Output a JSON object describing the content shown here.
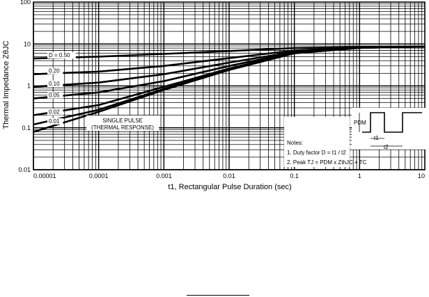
{
  "chart_data": {
    "type": "line",
    "title": "",
    "xlabel": "t1, Rectangular Pulse Duration (sec)",
    "ylabel": "Thermal Impedance ZθJC",
    "xscale": "log",
    "yscale": "log",
    "xlim": [
      1e-05,
      10
    ],
    "ylim": [
      0.01,
      100
    ],
    "grid": true,
    "x_ticks": [
      "0.00001",
      "0.0001",
      "0.001",
      "0.01",
      "0.1",
      "1",
      "10"
    ],
    "y_ticks": [
      "0.01",
      "0.1",
      "1",
      "10",
      "100"
    ],
    "series": [
      {
        "name": "D = 0.50",
        "x": [
          1e-05,
          0.0001,
          0.001,
          0.01,
          0.1,
          1,
          10
        ],
        "y": [
          4.5,
          5.0,
          5.8,
          6.8,
          8.0,
          8.5,
          8.7
        ]
      },
      {
        "name": "0.20",
        "x": [
          1e-05,
          0.0001,
          0.001,
          0.01,
          0.1,
          1,
          10
        ],
        "y": [
          1.9,
          2.2,
          3.0,
          4.6,
          7.0,
          8.3,
          8.7
        ]
      },
      {
        "name": "0.10",
        "x": [
          1e-05,
          0.0001,
          0.001,
          0.01,
          0.1,
          1,
          10
        ],
        "y": [
          0.95,
          1.2,
          1.9,
          3.6,
          6.5,
          8.2,
          8.7
        ]
      },
      {
        "name": "0.05",
        "x": [
          1e-05,
          0.0001,
          0.001,
          0.01,
          0.1,
          1,
          10
        ],
        "y": [
          0.5,
          0.7,
          1.3,
          3.0,
          6.3,
          8.2,
          8.7
        ]
      },
      {
        "name": "0.02",
        "x": [
          1e-05,
          0.0001,
          0.001,
          0.01,
          0.1,
          1,
          10
        ],
        "y": [
          0.2,
          0.35,
          0.95,
          2.6,
          6.1,
          8.1,
          8.7
        ]
      },
      {
        "name": "0.01",
        "x": [
          1e-05,
          0.0001,
          0.001,
          0.01,
          0.1,
          1,
          10
        ],
        "y": [
          0.12,
          0.27,
          0.85,
          2.5,
          6.0,
          8.1,
          8.7
        ]
      },
      {
        "name": "SINGLE PULSE (THERMAL RESPONSE)",
        "x": [
          1e-05,
          0.0001,
          0.001,
          0.01,
          0.1,
          1,
          10
        ],
        "y": [
          0.08,
          0.24,
          0.8,
          2.4,
          6.0,
          8.1,
          8.7
        ]
      }
    ],
    "curve_labels": [
      "D = 0.50",
      "0.20",
      "0.10",
      "0.05",
      "0.02",
      "0.01"
    ],
    "annotation": "SINGLE PULSE (THERMAL RESPONSE)",
    "inset": {
      "pdm_label": "PDM",
      "t1_label": "t1",
      "t2_label": "t2"
    },
    "notes": {
      "heading": "Notes:",
      "line1": "1. Duty factor D = t1 / t2",
      "line2": "2. Peak TJ = PDM x ZthJC + TC"
    }
  }
}
